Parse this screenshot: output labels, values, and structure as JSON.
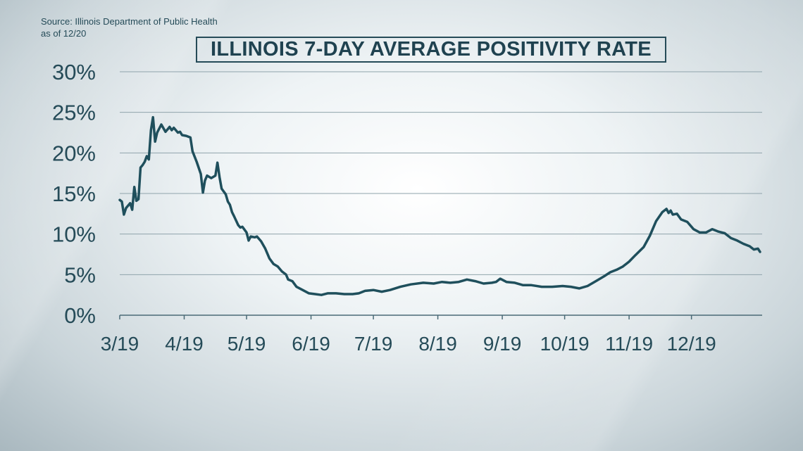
{
  "source": {
    "line1": "Source: Illinois Department of Public Health",
    "line2": "as of 12/20"
  },
  "chart_data": {
    "type": "line",
    "title": "ILLINOIS 7-DAY AVERAGE POSITIVITY RATE",
    "xlabel": "",
    "ylabel": "",
    "ylim": [
      0,
      30
    ],
    "yticks": [
      "0%",
      "5%",
      "10%",
      "15%",
      "20%",
      "25%",
      "30%"
    ],
    "xticks": [
      "3/19",
      "4/19",
      "5/19",
      "6/19",
      "7/19",
      "8/19",
      "9/19",
      "10/19",
      "11/19",
      "12/19"
    ],
    "grid": true,
    "line_color": "#1f4f5c",
    "series": [
      {
        "name": "",
        "points": [
          [
            "2020-03-19",
            14.2
          ],
          [
            "2020-03-20",
            14.0
          ],
          [
            "2020-03-21",
            12.4
          ],
          [
            "2020-03-22",
            13.2
          ],
          [
            "2020-03-24",
            13.8
          ],
          [
            "2020-03-25",
            13.0
          ],
          [
            "2020-03-26",
            15.8
          ],
          [
            "2020-03-27",
            14.1
          ],
          [
            "2020-03-28",
            14.3
          ],
          [
            "2020-03-29",
            18.2
          ],
          [
            "2020-03-30",
            18.5
          ],
          [
            "2020-03-31",
            18.9
          ],
          [
            "2020-04-01",
            19.6
          ],
          [
            "2020-04-02",
            19.2
          ],
          [
            "2020-04-03",
            22.8
          ],
          [
            "2020-04-04",
            24.4
          ],
          [
            "2020-04-05",
            21.4
          ],
          [
            "2020-04-06",
            22.5
          ],
          [
            "2020-04-08",
            23.5
          ],
          [
            "2020-04-10",
            22.6
          ],
          [
            "2020-04-11",
            22.9
          ],
          [
            "2020-04-12",
            23.2
          ],
          [
            "2020-04-13",
            22.8
          ],
          [
            "2020-04-14",
            23.1
          ],
          [
            "2020-04-16",
            22.5
          ],
          [
            "2020-04-17",
            22.6
          ],
          [
            "2020-04-18",
            22.2
          ],
          [
            "2020-04-20",
            22.1
          ],
          [
            "2020-04-22",
            21.9
          ],
          [
            "2020-04-23",
            20.2
          ],
          [
            "2020-04-25",
            18.9
          ],
          [
            "2020-04-27",
            17.4
          ],
          [
            "2020-04-28",
            15.1
          ],
          [
            "2020-04-29",
            16.6
          ],
          [
            "2020-04-30",
            17.2
          ],
          [
            "2020-05-02",
            16.9
          ],
          [
            "2020-05-04",
            17.2
          ],
          [
            "2020-05-05",
            18.8
          ],
          [
            "2020-05-06",
            17.0
          ],
          [
            "2020-05-07",
            15.6
          ],
          [
            "2020-05-09",
            14.9
          ],
          [
            "2020-05-10",
            14.0
          ],
          [
            "2020-05-11",
            13.6
          ],
          [
            "2020-05-12",
            12.7
          ],
          [
            "2020-05-13",
            12.2
          ],
          [
            "2020-05-15",
            11.1
          ],
          [
            "2020-05-16",
            10.8
          ],
          [
            "2020-05-17",
            10.9
          ],
          [
            "2020-05-19",
            10.2
          ],
          [
            "2020-05-20",
            9.2
          ],
          [
            "2020-05-21",
            9.7
          ],
          [
            "2020-05-23",
            9.6
          ],
          [
            "2020-05-24",
            9.7
          ],
          [
            "2020-05-26",
            9.1
          ],
          [
            "2020-05-28",
            8.2
          ],
          [
            "2020-05-30",
            7.0
          ],
          [
            "2020-06-01",
            6.3
          ],
          [
            "2020-06-03",
            6.0
          ],
          [
            "2020-06-05",
            5.4
          ],
          [
            "2020-06-07",
            5.0
          ],
          [
            "2020-06-08",
            4.4
          ],
          [
            "2020-06-10",
            4.2
          ],
          [
            "2020-06-12",
            3.5
          ],
          [
            "2020-06-15",
            3.1
          ],
          [
            "2020-06-18",
            2.7
          ],
          [
            "2020-06-21",
            2.6
          ],
          [
            "2020-06-24",
            2.5
          ],
          [
            "2020-06-27",
            2.7
          ],
          [
            "2020-07-01",
            2.7
          ],
          [
            "2020-07-05",
            2.6
          ],
          [
            "2020-07-09",
            2.6
          ],
          [
            "2020-07-12",
            2.7
          ],
          [
            "2020-07-15",
            3.0
          ],
          [
            "2020-07-19",
            3.1
          ],
          [
            "2020-07-23",
            2.9
          ],
          [
            "2020-07-27",
            3.1
          ],
          [
            "2020-08-01",
            3.5
          ],
          [
            "2020-08-06",
            3.8
          ],
          [
            "2020-08-12",
            4.0
          ],
          [
            "2020-08-17",
            3.9
          ],
          [
            "2020-08-21",
            4.1
          ],
          [
            "2020-08-25",
            4.0
          ],
          [
            "2020-08-29",
            4.1
          ],
          [
            "2020-09-02",
            4.4
          ],
          [
            "2020-09-06",
            4.2
          ],
          [
            "2020-09-10",
            3.9
          ],
          [
            "2020-09-14",
            4.0
          ],
          [
            "2020-09-16",
            4.1
          ],
          [
            "2020-09-18",
            4.5
          ],
          [
            "2020-09-21",
            4.1
          ],
          [
            "2020-09-25",
            4.0
          ],
          [
            "2020-09-29",
            3.7
          ],
          [
            "2020-10-03",
            3.7
          ],
          [
            "2020-10-08",
            3.5
          ],
          [
            "2020-10-13",
            3.5
          ],
          [
            "2020-10-18",
            3.6
          ],
          [
            "2020-10-22",
            3.5
          ],
          [
            "2020-10-26",
            3.3
          ],
          [
            "2020-10-30",
            3.6
          ],
          [
            "2020-11-03",
            4.2
          ],
          [
            "2020-11-07",
            4.8
          ],
          [
            "2020-11-10",
            5.3
          ],
          [
            "2020-11-13",
            5.6
          ],
          [
            "2020-11-16",
            6.0
          ],
          [
            "2020-11-19",
            6.6
          ],
          [
            "2020-11-22",
            7.4
          ],
          [
            "2020-11-26",
            8.4
          ],
          [
            "2020-11-29",
            9.8
          ],
          [
            "2020-12-02",
            11.6
          ],
          [
            "2020-12-05",
            12.7
          ],
          [
            "2020-12-07",
            13.1
          ],
          [
            "2020-12-08",
            12.6
          ],
          [
            "2020-12-09",
            12.9
          ],
          [
            "2020-12-10",
            12.4
          ],
          [
            "2020-12-12",
            12.5
          ],
          [
            "2020-12-14",
            11.8
          ],
          [
            "2020-12-17",
            11.5
          ],
          [
            "2020-12-20",
            10.6
          ],
          [
            "2020-12-23",
            10.2
          ],
          [
            "2020-12-26",
            10.2
          ],
          [
            "2020-12-29",
            10.6
          ],
          [
            "2021-01-01",
            10.3
          ],
          [
            "2021-01-04",
            10.1
          ],
          [
            "2021-01-07",
            9.5
          ],
          [
            "2021-01-10",
            9.2
          ],
          [
            "2021-01-13",
            8.8
          ],
          [
            "2021-01-16",
            8.5
          ],
          [
            "2021-01-18",
            8.1
          ],
          [
            "2021-01-20",
            8.2
          ],
          [
            "2021-01-21",
            7.8
          ]
        ]
      }
    ]
  }
}
